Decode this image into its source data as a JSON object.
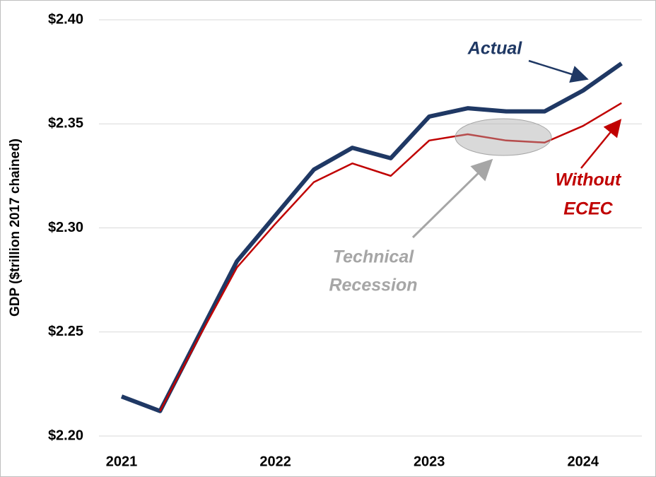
{
  "chart_data": {
    "type": "line",
    "y_label": "GDP ($trillion 2017 chained)",
    "categories": [
      "2021",
      null,
      null,
      null,
      "2022",
      null,
      null,
      null,
      "2023",
      null,
      null,
      null,
      "2024",
      null
    ],
    "series": [
      {
        "name": "Actual",
        "color": "#1f3864",
        "values": [
          2.219,
          2.212,
          2.248,
          2.284,
          2.306,
          2.328,
          2.3385,
          2.3335,
          2.3535,
          2.3575,
          2.356,
          2.356,
          2.366,
          2.379
        ]
      },
      {
        "name": "Without ECEC",
        "color": "#c00000",
        "values": [
          null,
          2.212,
          2.247,
          2.281,
          2.302,
          2.322,
          2.331,
          2.325,
          2.342,
          2.345,
          2.342,
          2.341,
          2.349,
          2.36
        ]
      }
    ],
    "annotations": {
      "actual": [
        "Actual"
      ],
      "without": [
        "Without",
        "ECEC"
      ],
      "recession": [
        "Technical",
        "Recession"
      ]
    },
    "ylim": [
      2.2,
      2.4
    ],
    "yticks": [
      {
        "value": 2.2,
        "label": "$2.20"
      },
      {
        "value": 2.25,
        "label": "$2.25"
      },
      {
        "value": 2.3,
        "label": "$2.30"
      },
      {
        "value": 2.35,
        "label": "$2.35"
      },
      {
        "value": 2.4,
        "label": "$2.40"
      }
    ],
    "grid": true
  }
}
